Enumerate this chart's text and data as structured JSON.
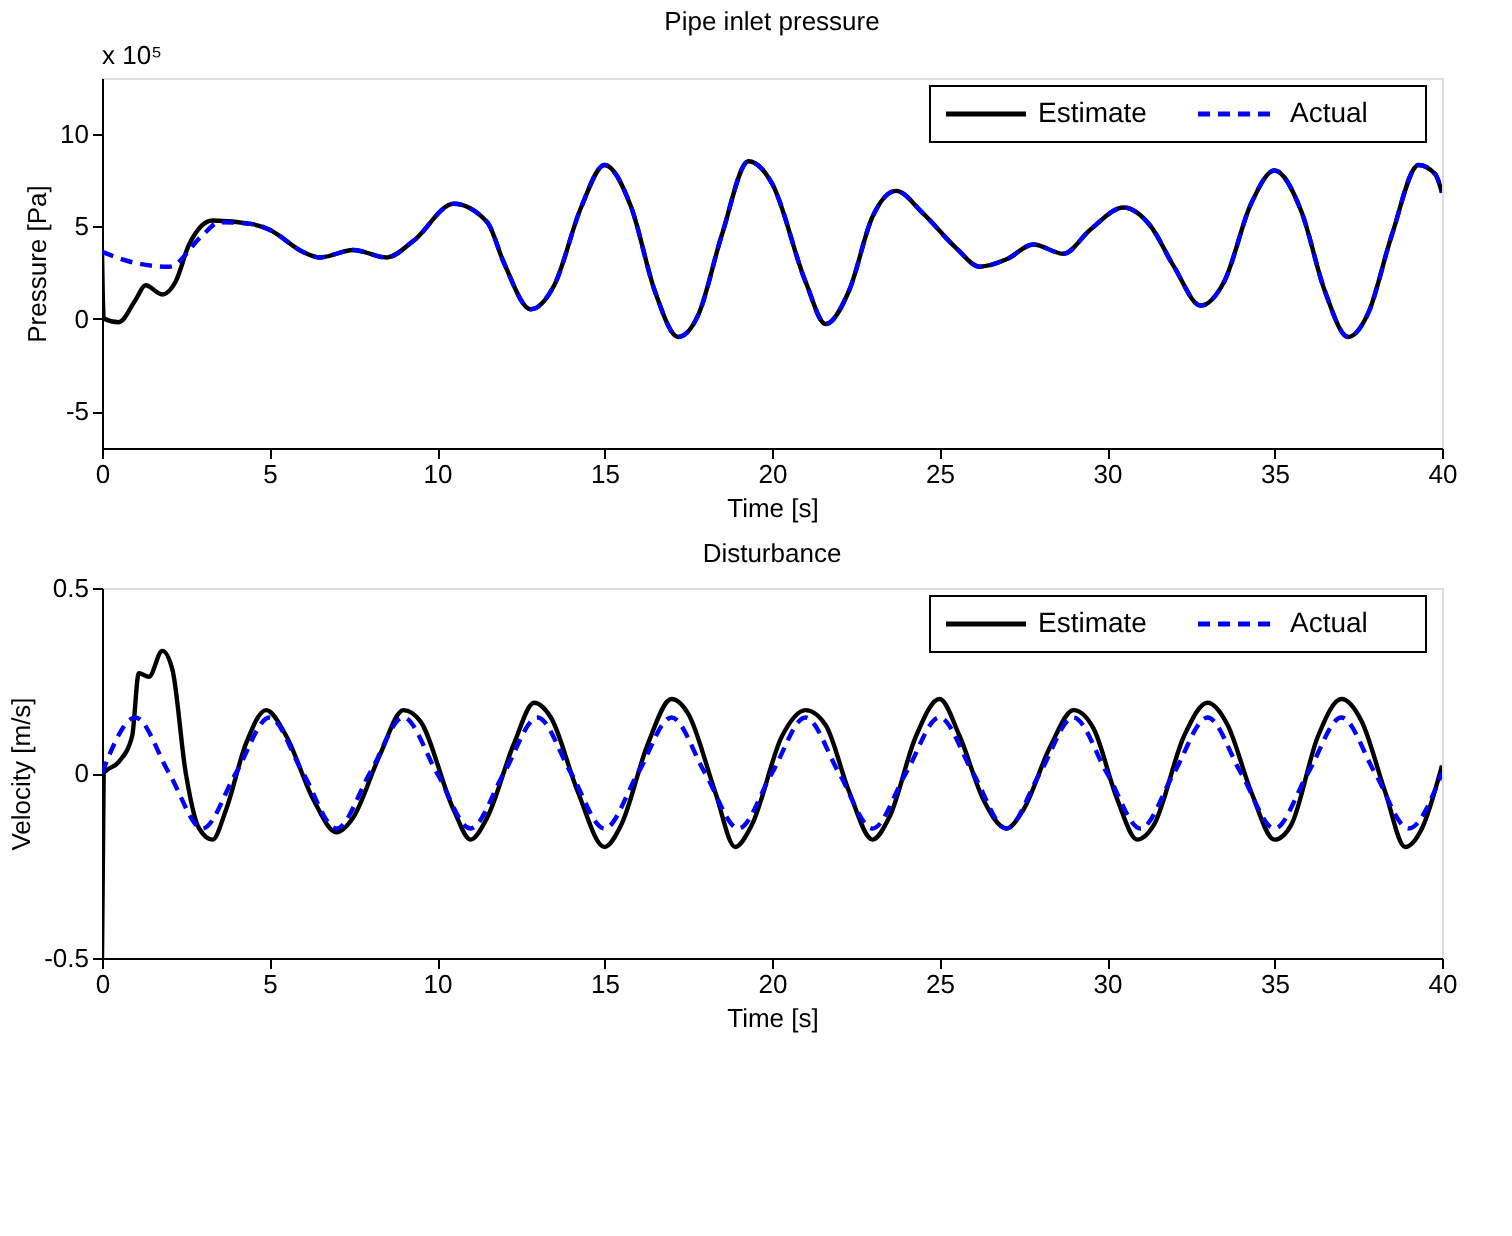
{
  "chart_data": [
    {
      "type": "line",
      "title": "Pipe inlet pressure",
      "xlabel": "Time [s]",
      "ylabel": "Pressure [Pa]",
      "annotations": [
        "x 10⁵"
      ],
      "xlim": [
        0,
        40
      ],
      "xticks": [
        0,
        5,
        10,
        15,
        20,
        25,
        30,
        35,
        40
      ],
      "ylim": [
        -7,
        13
      ],
      "yticks": [
        -5,
        0,
        5,
        10
      ],
      "grid": false,
      "legend": "top right",
      "series": [
        {
          "name": "Estimate",
          "color": "#000000",
          "line_style": "solid",
          "x": [
            0,
            0.05,
            0.5,
            1,
            1.3,
            1.8,
            2.2,
            2.6,
            3.3,
            4.5,
            5,
            6,
            6.5,
            7.5,
            8.5,
            9.3,
            10.5,
            11.5,
            12,
            12.8,
            13.5,
            14.3,
            15,
            15.8,
            16.5,
            17.2,
            17.8,
            18.5,
            19.3,
            20,
            21,
            21.6,
            22.3,
            23,
            23.7,
            24.5,
            25.5,
            26.2,
            27,
            27.8,
            28.7,
            29.5,
            30.5,
            31.3,
            32,
            32.8,
            33.5,
            34.3,
            35,
            35.8,
            36.5,
            37.2,
            37.8,
            38.5,
            39.3,
            39.8,
            40
          ],
          "values": [
            3.6,
            0.0,
            -0.2,
            1.0,
            1.8,
            1.3,
            2.0,
            4.0,
            5.3,
            5.1,
            4.8,
            3.6,
            3.3,
            3.7,
            3.3,
            4.2,
            6.2,
            5.2,
            3.0,
            0.5,
            1.8,
            6.0,
            8.3,
            6.0,
            1.5,
            -1.0,
            0.2,
            4.5,
            8.5,
            7.3,
            2.0,
            -0.3,
            1.5,
            5.5,
            6.9,
            5.7,
            3.8,
            2.8,
            3.2,
            4.0,
            3.5,
            4.8,
            6.0,
            5.0,
            2.8,
            0.7,
            2.0,
            6.2,
            8.0,
            5.8,
            1.5,
            -1.0,
            0.3,
            4.5,
            8.3,
            7.8,
            6.8
          ]
        },
        {
          "name": "Actual",
          "color": "#0000ff",
          "line_style": "dashed",
          "x": [
            0,
            1,
            2,
            3,
            3.5,
            4.5,
            5,
            6,
            6.5,
            7.5,
            8.5,
            9.3,
            10.5,
            11.5,
            12,
            12.8,
            13.5,
            14.3,
            15,
            15.8,
            16.5,
            17.2,
            17.8,
            18.5,
            19.3,
            20,
            21,
            21.6,
            22.3,
            23,
            23.7,
            24.5,
            25.5,
            26.2,
            27,
            27.8,
            28.7,
            29.5,
            30.5,
            31.3,
            32,
            32.8,
            33.5,
            34.3,
            35,
            35.8,
            36.5,
            37.2,
            37.8,
            38.5,
            39.3,
            39.8,
            40
          ],
          "values": [
            3.6,
            3.0,
            2.8,
            4.5,
            5.2,
            5.1,
            4.8,
            3.6,
            3.3,
            3.7,
            3.3,
            4.2,
            6.2,
            5.2,
            3.0,
            0.5,
            1.8,
            6.0,
            8.3,
            6.0,
            1.5,
            -1.0,
            0.2,
            4.5,
            8.5,
            7.3,
            2.0,
            -0.3,
            1.5,
            5.5,
            6.9,
            5.7,
            3.8,
            2.8,
            3.2,
            4.0,
            3.5,
            4.8,
            6.0,
            5.0,
            2.8,
            0.7,
            2.0,
            6.2,
            8.0,
            5.8,
            1.5,
            -1.0,
            0.3,
            4.5,
            8.3,
            7.8,
            6.8
          ]
        }
      ]
    },
    {
      "type": "line",
      "title": "Disturbance",
      "xlabel": "Time [s]",
      "ylabel": "Velocity [m/s]",
      "xlim": [
        0,
        40
      ],
      "xticks": [
        0,
        5,
        10,
        15,
        20,
        25,
        30,
        35,
        40
      ],
      "ylim": [
        -0.5,
        0.5
      ],
      "yticks": [
        -0.5,
        0,
        0.5
      ],
      "grid": false,
      "legend": "top right",
      "series": [
        {
          "name": "Estimate",
          "color": "#000000",
          "line_style": "solid",
          "x": [
            0,
            0.05,
            0.5,
            0.9,
            1.1,
            1.4,
            1.8,
            2.1,
            2.5,
            2.9,
            3.3,
            3.7,
            4.3,
            4.9,
            5.5,
            6.3,
            7,
            7.5,
            8.3,
            9,
            9.5,
            10.5,
            11,
            11.5,
            12.3,
            12.9,
            13.4,
            14.2,
            15,
            15.5,
            16.3,
            17,
            17.5,
            18.3,
            18.9,
            19.4,
            20.3,
            21,
            21.6,
            22.3,
            23,
            23.5,
            24.3,
            25,
            25.6,
            26.3,
            27,
            27.5,
            28.3,
            29,
            29.6,
            30.3,
            30.9,
            31.4,
            32.3,
            33,
            33.6,
            34.3,
            35,
            35.5,
            36.3,
            37,
            37.6,
            38.3,
            38.9,
            39.4,
            40
          ],
          "values": [
            -0.5,
            0.0,
            0.03,
            0.1,
            0.27,
            0.26,
            0.33,
            0.28,
            0.0,
            -0.15,
            -0.18,
            -0.1,
            0.08,
            0.17,
            0.1,
            -0.07,
            -0.16,
            -0.12,
            0.05,
            0.17,
            0.14,
            -0.1,
            -0.18,
            -0.12,
            0.08,
            0.19,
            0.15,
            -0.05,
            -0.2,
            -0.14,
            0.08,
            0.2,
            0.16,
            -0.05,
            -0.2,
            -0.14,
            0.1,
            0.17,
            0.13,
            -0.05,
            -0.18,
            -0.12,
            0.1,
            0.2,
            0.1,
            -0.07,
            -0.15,
            -0.1,
            0.07,
            0.17,
            0.12,
            -0.07,
            -0.18,
            -0.14,
            0.1,
            0.19,
            0.13,
            -0.05,
            -0.18,
            -0.14,
            0.1,
            0.2,
            0.14,
            -0.05,
            -0.2,
            -0.15,
            0.02
          ]
        },
        {
          "name": "Actual",
          "color": "#0000ff",
          "line_style": "dashed",
          "x": [
            0,
            1,
            2,
            3,
            4,
            5,
            6,
            7,
            8,
            9,
            10,
            11,
            12,
            13,
            14,
            15,
            16,
            17,
            18,
            19,
            20,
            21,
            22,
            23,
            24,
            25,
            26,
            27,
            28,
            29,
            30,
            31,
            32,
            33,
            34,
            35,
            36,
            37,
            38,
            39,
            40
          ],
          "values": [
            0,
            0.15,
            0,
            -0.15,
            0,
            0.15,
            0,
            -0.15,
            0,
            0.15,
            0,
            -0.15,
            0,
            0.15,
            0,
            -0.15,
            0,
            0.15,
            0,
            -0.15,
            0,
            0.15,
            0,
            -0.15,
            0,
            0.15,
            0,
            -0.15,
            0,
            0.15,
            0,
            -0.15,
            0,
            0.15,
            0,
            -0.15,
            0,
            0.15,
            0,
            -0.15,
            0
          ]
        }
      ]
    }
  ]
}
